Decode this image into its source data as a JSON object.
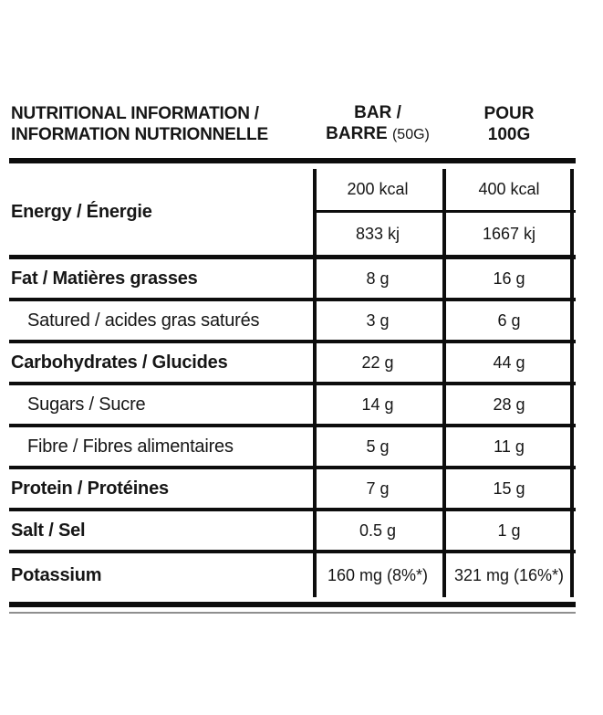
{
  "table": {
    "header": {
      "title_line1": "NUTRITIONAL INFORMATION /",
      "title_line2": "INFORMATION NUTRIONNELLE",
      "bar_line1": "BAR /",
      "bar_line2_bold": "BARRE",
      "bar_line2_small": "(50G)",
      "per100_line1": "POUR",
      "per100_line2": "100G"
    },
    "energy": {
      "label": "Energy / Énergie",
      "kcal_bar": "200 kcal",
      "kcal_per100": "400 kcal",
      "kj_bar": "833 kj",
      "kj_per100": "1667 kj"
    },
    "rows": [
      {
        "label": "Fat / Matières grasses",
        "bar": "8 g",
        "per100": "16 g"
      },
      {
        "label": "Satured / acides gras saturés",
        "bar": "3 g",
        "per100": "6 g"
      },
      {
        "label": "Carbohydrates / Glucides",
        "bar": "22 g",
        "per100": "44 g"
      },
      {
        "label": "Sugars / Sucre",
        "bar": "14 g",
        "per100": "28 g"
      },
      {
        "label": "Fibre / Fibres alimentaires",
        "bar": "5 g",
        "per100": "11 g"
      },
      {
        "label": "Protein / Protéines",
        "bar": "7 g",
        "per100": "15 g"
      },
      {
        "label": "Salt / Sel",
        "bar": "0.5 g",
        "per100": "1 g"
      },
      {
        "label": "Potassium",
        "bar": "160 mg (8%*)",
        "per100": "321 mg (16%*)"
      }
    ],
    "colors": {
      "text": "#161616",
      "rule": "#0d0d0d",
      "thin_rule": "#8f8f8f",
      "background": "#ffffff"
    }
  }
}
